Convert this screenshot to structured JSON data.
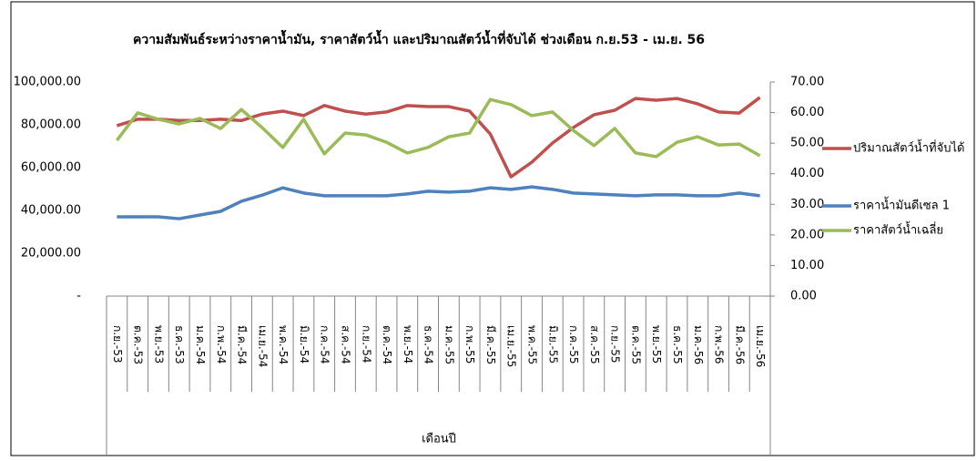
{
  "chart_data": {
    "type": "line",
    "title": "ความสัมพันธ์ระหว่างราคาน้ำมัน, ราคาสัตว์น้ำ และปริมาณสัตว์น้ำที่จับได้ ช่วงเดือน ก.ย.53 - เม.ย. 56",
    "x_label": "เดือนปี",
    "categories": [
      "ก.ย.-53",
      "ต.ค.-53",
      "พ.ย.-53",
      "ธ.ค.-53",
      "ม.ค.-54",
      "ก.พ.-54",
      "มี.ค.-54",
      "เม.ย.-54",
      "พ.ค.-54",
      "มิ.ย.-54",
      "ก.ค.-54",
      "ส.ค.-54",
      "ก.ย.-54",
      "ต.ค.-54",
      "พ.ย.-54",
      "ธ.ค.-54",
      "ม.ค.-55",
      "ก.พ.-55",
      "มี.ค.-55",
      "เม.ย.-55",
      "พ.ค.-55",
      "มิ.ย.-55",
      "ก.ค.-55",
      "ส.ค.-55",
      "ก.ย.-55",
      "ต.ค.-55",
      "พ.ย.-55",
      "ธ.ค.-55",
      "ม.ค.-56",
      "ก.พ.-56",
      "มี.ค.-56",
      "เม.ย.-56"
    ],
    "series": [
      {
        "name": "ปริมาณสัตว์น้ำที่จับได้",
        "color": "#c0504d",
        "axis": "y",
        "values": [
          79600,
          82600,
          82600,
          82000,
          82000,
          82600,
          82000,
          85000,
          86400,
          84300,
          89000,
          86400,
          85000,
          86000,
          89000,
          88500,
          88500,
          86400,
          75700,
          55700,
          62500,
          71500,
          78700,
          84700,
          86800,
          92300,
          91500,
          92300,
          89800,
          86000,
          85500,
          92800
        ]
      },
      {
        "name": "ราคาน้ำมันดีเซล 1",
        "color": "#4f81bd",
        "axis": "y2",
        "values": [
          25.9,
          25.9,
          25.9,
          25.3,
          26.5,
          27.7,
          31,
          33,
          35.4,
          33.7,
          32.8,
          32.8,
          32.8,
          32.8,
          33.4,
          34.3,
          34,
          34.3,
          35.4,
          34.9,
          35.7,
          34.9,
          33.7,
          33.4,
          33.1,
          32.8,
          33.1,
          33.1,
          32.8,
          32.8,
          33.7,
          32.8
        ]
      },
      {
        "name": "ราคาสัตว์น้ำเฉลี่ย",
        "color": "#9bbb59",
        "axis": "y2",
        "values": [
          50.9,
          59.9,
          57.8,
          56.3,
          58.1,
          54.8,
          61,
          55.1,
          48.6,
          57.8,
          46.5,
          53.3,
          52.7,
          50.3,
          46.8,
          48.6,
          52.1,
          53.3,
          64.3,
          62.6,
          59,
          60.2,
          54.2,
          49.2,
          54.8,
          46.8,
          45.6,
          50.3,
          52.1,
          49.4,
          49.7,
          45.9
        ]
      }
    ],
    "ylim": [
      0,
      100000
    ],
    "yticks": [
      {
        "value": 0,
        "label": "-"
      },
      {
        "value": 20000,
        "label": "20,000.00"
      },
      {
        "value": 40000,
        "label": "40,000.00"
      },
      {
        "value": 60000,
        "label": "60,000.00"
      },
      {
        "value": 80000,
        "label": "80,000.00"
      },
      {
        "value": 100000,
        "label": "100,000.00"
      }
    ],
    "y2lim": [
      0,
      70
    ],
    "y2ticks": [
      {
        "value": 0,
        "label": "0.00"
      },
      {
        "value": 10,
        "label": "10.00"
      },
      {
        "value": 20,
        "label": "20.00"
      },
      {
        "value": 30,
        "label": "30.00"
      },
      {
        "value": 40,
        "label": "40.00"
      },
      {
        "value": 50,
        "label": "50.00"
      },
      {
        "value": 60,
        "label": "60.00"
      },
      {
        "value": 70,
        "label": "70.00"
      }
    ],
    "legend": "right"
  }
}
